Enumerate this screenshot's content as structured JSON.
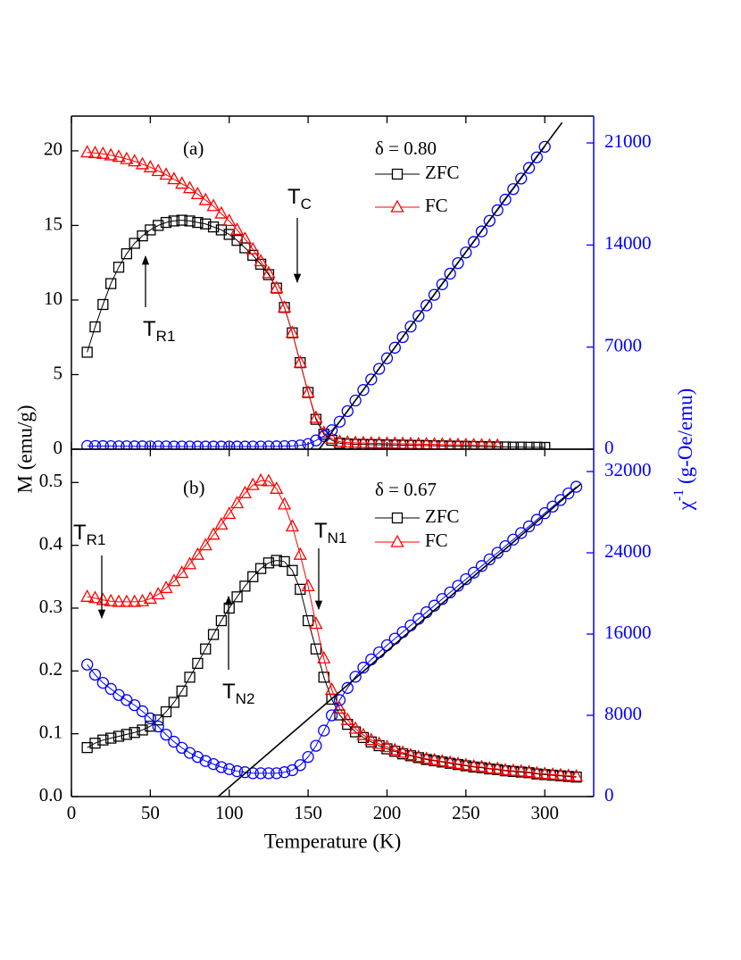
{
  "chart_data": [
    {
      "type": "line",
      "panel_label": "(a)",
      "subtitle": "δ = 0.80",
      "xlim": [
        0,
        331
      ],
      "xticks": [
        0,
        50,
        100,
        150,
        200,
        250,
        300
      ],
      "ylim": [
        0,
        22.33
      ],
      "yticks": [
        0,
        5,
        10,
        15,
        20
      ],
      "y2lim": [
        0,
        22840
      ],
      "y2ticks": [
        0,
        7000,
        14000,
        21000
      ],
      "series": [
        {
          "name": "ZFC",
          "color": "#000000",
          "marker": "square",
          "x": [
            10,
            15,
            20,
            25,
            30,
            35,
            40,
            45,
            50,
            55,
            60,
            65,
            70,
            75,
            80,
            85,
            90,
            95,
            100,
            105,
            110,
            115,
            120,
            125,
            130,
            135,
            140,
            145,
            150,
            155,
            160,
            165,
            170,
            175,
            180,
            185,
            190,
            195,
            200,
            205,
            210,
            215,
            220,
            225,
            230,
            235,
            240,
            245,
            250,
            255,
            260,
            265,
            270,
            275,
            280,
            285,
            290,
            295,
            300
          ],
          "values": [
            6.5,
            8.2,
            9.7,
            11.1,
            12.2,
            13.1,
            13.8,
            14.3,
            14.7,
            15.0,
            15.2,
            15.3,
            15.35,
            15.3,
            15.2,
            15.1,
            14.9,
            14.7,
            14.4,
            14.0,
            13.5,
            13.0,
            12.4,
            11.7,
            10.8,
            9.5,
            7.8,
            5.8,
            3.8,
            2.0,
            1.0,
            0.6,
            0.4,
            0.35,
            0.33,
            0.32,
            0.31,
            0.3,
            0.29,
            0.28,
            0.27,
            0.26,
            0.25,
            0.24,
            0.23,
            0.22,
            0.21,
            0.2,
            0.19,
            0.18,
            0.17,
            0.16,
            0.15,
            0.15,
            0.14,
            0.14,
            0.13,
            0.13,
            0.12
          ]
        },
        {
          "name": "FC",
          "color": "#ff0000",
          "marker": "triangle",
          "x": [
            10,
            15,
            20,
            25,
            30,
            35,
            40,
            45,
            50,
            55,
            60,
            65,
            70,
            75,
            80,
            85,
            90,
            95,
            100,
            105,
            110,
            115,
            120,
            125,
            130,
            135,
            140,
            145,
            150,
            155,
            160,
            165,
            170,
            175,
            180,
            185,
            190,
            195,
            200,
            205,
            210,
            215,
            220,
            225,
            230,
            235,
            240,
            245,
            250,
            255,
            260,
            265,
            270,
            275,
            280,
            285,
            290,
            295,
            300
          ],
          "values": [
            19.9,
            19.85,
            19.8,
            19.7,
            19.6,
            19.45,
            19.3,
            19.1,
            18.9,
            18.65,
            18.4,
            18.1,
            17.8,
            17.5,
            17.1,
            16.7,
            16.3,
            15.8,
            15.3,
            14.7,
            14.1,
            13.4,
            12.6,
            11.8,
            10.8,
            9.5,
            7.8,
            5.8,
            3.8,
            2.1,
            1.1,
            0.7,
            0.5,
            0.45,
            0.43,
            0.41,
            0.4,
            0.39,
            0.38,
            0.37,
            0.36,
            0.35,
            0.34,
            0.33,
            0.32,
            0.31,
            0.3,
            0.29,
            0.28,
            0.27,
            0.26,
            0.25,
            0.24,
            null,
            null,
            null,
            null,
            null,
            null
          ]
        },
        {
          "color": "#0000ff",
          "marker": "circle",
          "axis": "y2",
          "x": [
            10,
            15,
            20,
            25,
            30,
            35,
            40,
            45,
            50,
            55,
            60,
            65,
            70,
            75,
            80,
            85,
            90,
            95,
            100,
            105,
            110,
            115,
            120,
            125,
            130,
            135,
            140,
            145,
            150,
            155,
            160,
            165,
            170,
            175,
            180,
            185,
            190,
            195,
            200,
            205,
            210,
            215,
            220,
            225,
            230,
            235,
            240,
            245,
            250,
            255,
            260,
            265,
            270,
            275,
            280,
            285,
            290,
            295,
            300
          ],
          "values": [
            220,
            215,
            210,
            205,
            200,
            200,
            195,
            195,
            190,
            190,
            190,
            185,
            185,
            185,
            180,
            180,
            180,
            180,
            180,
            180,
            180,
            185,
            185,
            190,
            195,
            205,
            220,
            260,
            350,
            600,
            900,
            1300,
            1885,
            2610,
            3335,
            4060,
            4785,
            5510,
            6235,
            6960,
            7685,
            8410,
            9135,
            9860,
            10585,
            11310,
            12035,
            12760,
            13485,
            14210,
            14935,
            15660,
            16385,
            17110,
            17835,
            18560,
            19285,
            20010,
            20735
          ]
        },
        {
          "color": "#000000",
          "marker": "none",
          "axis": "y2",
          "x": [
            157,
            311
          ],
          "values": [
            0,
            22400
          ]
        }
      ],
      "annotations": [
        {
          "text": "T",
          "sub": "C"
        },
        {
          "text": "T",
          "sub": "R1"
        }
      ]
    },
    {
      "type": "line",
      "panel_label": "(b)",
      "subtitle": "δ = 0.67",
      "xlabel": "Temperature (K)",
      "ylabel": "M (emu/g)",
      "y2label": {
        "symbol": "χ",
        "sup": "-1",
        "unit": " (g-Oe/emu)"
      },
      "xlim": [
        0,
        331
      ],
      "xticks": [
        0,
        50,
        100,
        150,
        200,
        250,
        300
      ],
      "ylim": [
        0,
        0.553
      ],
      "yticks": [
        {
          "value": 0,
          "label": "0.0"
        },
        0.1,
        0.2,
        0.3,
        0.4,
        0.5
      ],
      "y2lim": [
        0,
        34200
      ],
      "y2ticks": [
        0,
        8000,
        16000,
        24000,
        32000
      ],
      "series": [
        {
          "name": "ZFC",
          "color": "#000000",
          "marker": "square",
          "x": [
            10,
            15,
            20,
            25,
            30,
            35,
            40,
            45,
            50,
            55,
            60,
            65,
            70,
            75,
            80,
            85,
            90,
            95,
            100,
            105,
            110,
            115,
            120,
            125,
            130,
            135,
            140,
            145,
            150,
            155,
            160,
            165,
            170,
            175,
            180,
            185,
            190,
            195,
            200,
            205,
            210,
            215,
            220,
            225,
            230,
            235,
            240,
            245,
            250,
            255,
            260,
            265,
            270,
            275,
            280,
            285,
            290,
            295,
            300,
            305,
            310,
            315,
            320
          ],
          "values": [
            0.078,
            0.085,
            0.09,
            0.093,
            0.096,
            0.099,
            0.102,
            0.106,
            0.112,
            0.122,
            0.135,
            0.15,
            0.168,
            0.19,
            0.212,
            0.235,
            0.258,
            0.28,
            0.3,
            0.318,
            0.335,
            0.35,
            0.363,
            0.372,
            0.376,
            0.374,
            0.36,
            0.33,
            0.28,
            0.235,
            0.19,
            0.155,
            0.13,
            0.115,
            0.103,
            0.094,
            0.087,
            0.081,
            0.076,
            0.072,
            0.068,
            0.065,
            0.062,
            0.059,
            0.057,
            0.055,
            0.053,
            0.051,
            0.049,
            0.047,
            0.046,
            0.044,
            0.043,
            0.041,
            0.04,
            0.039,
            0.038,
            0.036,
            0.035,
            0.034,
            0.033,
            0.032,
            0.031
          ]
        },
        {
          "name": "FC",
          "color": "#ff0000",
          "marker": "triangle",
          "x": [
            10,
            15,
            20,
            25,
            30,
            35,
            40,
            45,
            50,
            55,
            60,
            65,
            70,
            75,
            80,
            85,
            90,
            95,
            100,
            105,
            110,
            115,
            120,
            125,
            130,
            135,
            140,
            145,
            150,
            155,
            160,
            165,
            170,
            175,
            180,
            185,
            190,
            195,
            200,
            205,
            210,
            215,
            220,
            225,
            230,
            235,
            240,
            245,
            250,
            255,
            260,
            265,
            270,
            275,
            280,
            285,
            290,
            295,
            300,
            305,
            310,
            315,
            320
          ],
          "values": [
            0.318,
            0.316,
            0.313,
            0.311,
            0.31,
            0.31,
            0.31,
            0.311,
            0.315,
            0.322,
            0.332,
            0.343,
            0.356,
            0.37,
            0.385,
            0.4,
            0.417,
            0.433,
            0.45,
            0.467,
            0.483,
            0.496,
            0.503,
            0.502,
            0.49,
            0.465,
            0.43,
            0.385,
            0.335,
            0.275,
            0.22,
            0.17,
            0.14,
            0.122,
            0.108,
            0.098,
            0.09,
            0.084,
            0.079,
            0.074,
            0.07,
            0.066,
            0.063,
            0.06,
            0.058,
            0.056,
            0.054,
            0.052,
            0.05,
            0.048,
            0.047,
            0.045,
            0.044,
            0.042,
            0.041,
            0.04,
            0.039,
            0.037,
            0.036,
            0.035,
            0.034,
            0.033,
            0.032
          ]
        },
        {
          "color": "#0000ff",
          "marker": "circle",
          "axis": "y2",
          "x": [
            10,
            15,
            20,
            25,
            30,
            35,
            40,
            45,
            50,
            55,
            60,
            65,
            70,
            75,
            80,
            85,
            90,
            95,
            100,
            105,
            110,
            115,
            120,
            125,
            130,
            135,
            140,
            145,
            150,
            155,
            160,
            165,
            170,
            175,
            180,
            185,
            190,
            195,
            200,
            205,
            210,
            215,
            220,
            225,
            230,
            235,
            240,
            245,
            250,
            255,
            260,
            265,
            270,
            275,
            280,
            285,
            290,
            295,
            300,
            305,
            310,
            315,
            320
          ],
          "values": [
            13000,
            12000,
            11200,
            10600,
            10000,
            9500,
            9000,
            8400,
            7700,
            6900,
            6100,
            5400,
            4800,
            4300,
            3900,
            3500,
            3200,
            2900,
            2700,
            2500,
            2400,
            2300,
            2300,
            2300,
            2300,
            2400,
            2600,
            3100,
            3900,
            5000,
            6500,
            8000,
            9500,
            10700,
            11800,
            12700,
            13500,
            14200,
            14900,
            15550,
            16200,
            16850,
            17500,
            18150,
            18800,
            19450,
            20100,
            20750,
            21400,
            22050,
            22700,
            23350,
            24000,
            24650,
            25300,
            25950,
            26600,
            27250,
            27900,
            28550,
            29200,
            29850,
            30500
          ]
        },
        {
          "color": "#000000",
          "marker": "none",
          "axis": "y2",
          "x": [
            93,
            323
          ],
          "values": [
            0,
            30800
          ]
        }
      ],
      "annotations": [
        {
          "text": "T",
          "sub": "N1"
        },
        {
          "text": "T",
          "sub": "N2"
        },
        {
          "text": "T",
          "sub": "R1"
        }
      ]
    }
  ]
}
